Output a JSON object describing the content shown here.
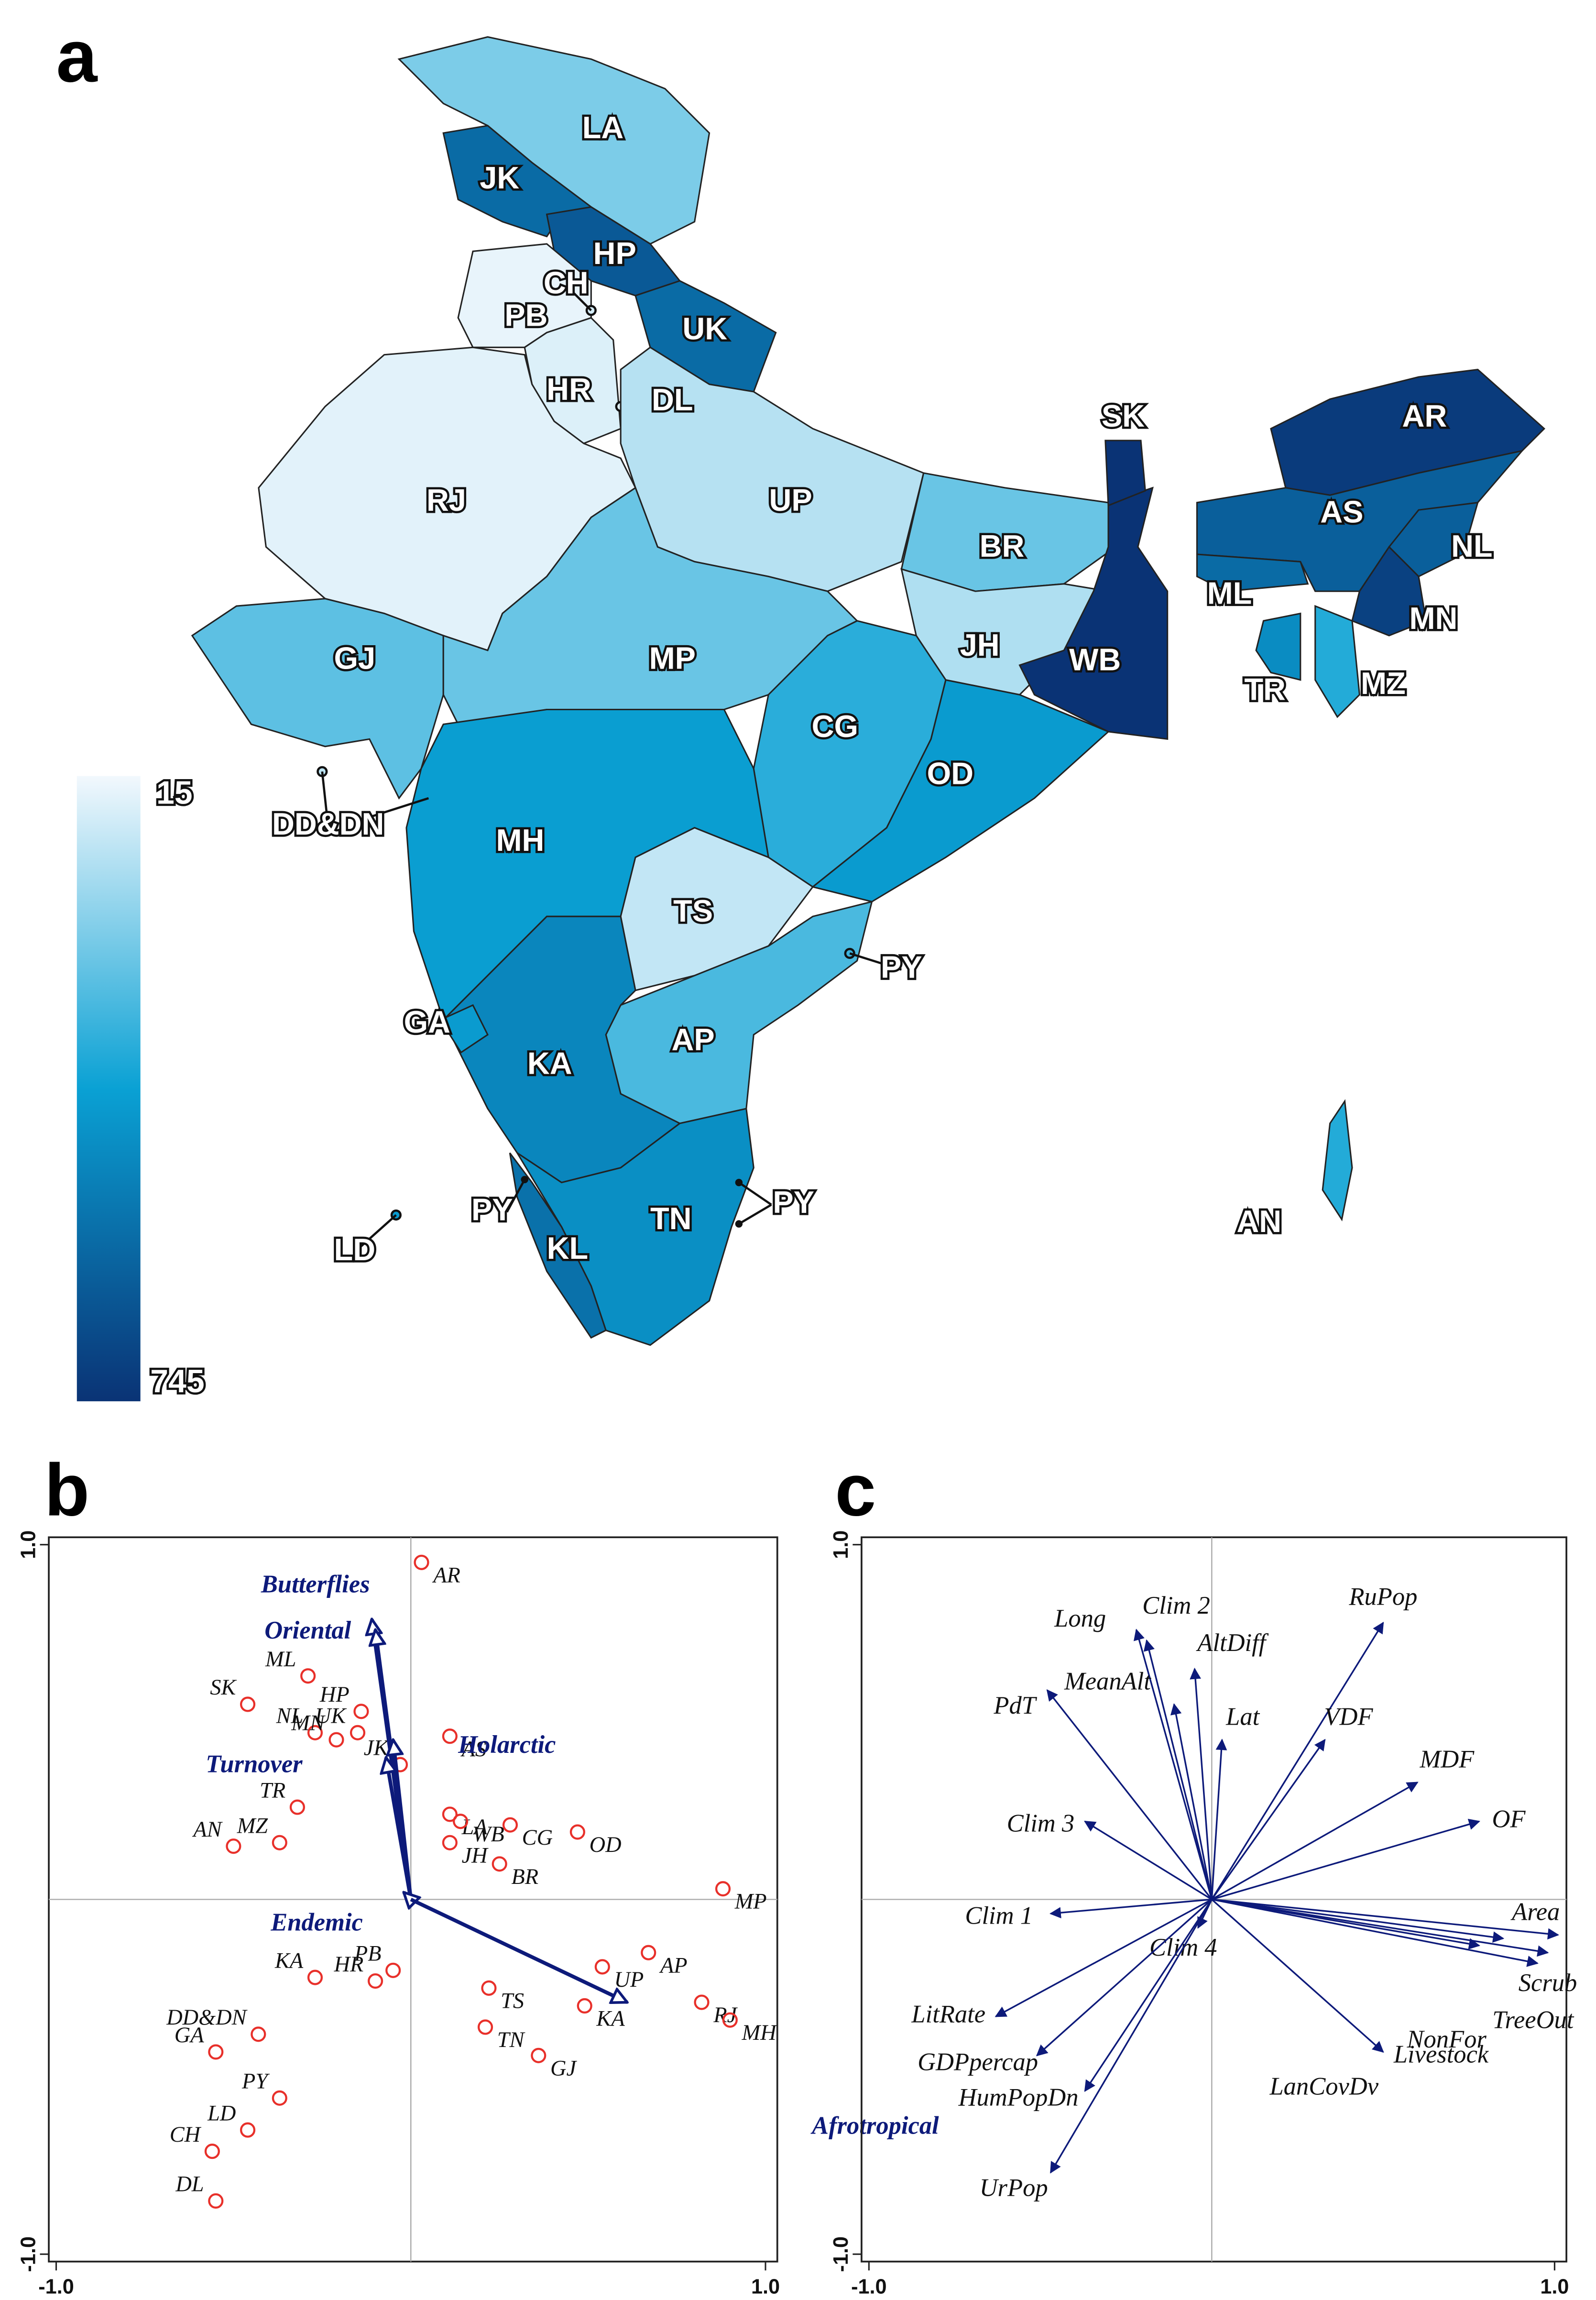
{
  "chart_data": [
    {
      "type": "choropleth",
      "panel": "a",
      "colorbar": {
        "min": 15,
        "max": 745,
        "colors": [
          "#f2f8fd",
          "#0aa1d4",
          "#0a3375"
        ]
      },
      "regions": [
        {
          "label": "LA",
          "value": 200
        },
        {
          "label": "JK",
          "value": 560
        },
        {
          "label": "HP",
          "value": 620
        },
        {
          "label": "UK",
          "value": 560
        },
        {
          "label": "PB",
          "value": 30
        },
        {
          "label": "CH",
          "value": 60
        },
        {
          "label": "HR",
          "value": 50
        },
        {
          "label": "DL",
          "value": 40
        },
        {
          "label": "RJ",
          "value": 40
        },
        {
          "label": "UP",
          "value": 110
        },
        {
          "label": "BR",
          "value": 230
        },
        {
          "label": "GJ",
          "value": 250
        },
        {
          "label": "MP",
          "value": 230
        },
        {
          "label": "JH",
          "value": 120
        },
        {
          "label": "WB",
          "value": 745
        },
        {
          "label": "CG",
          "value": 330
        },
        {
          "label": "OD",
          "value": 400
        },
        {
          "label": "MH",
          "value": 390
        },
        {
          "label": "TS",
          "value": 90
        },
        {
          "label": "AP",
          "value": 280
        },
        {
          "label": "KA",
          "value": 470
        },
        {
          "label": "GA",
          "value": 400
        },
        {
          "label": "TN",
          "value": 440
        },
        {
          "label": "KL",
          "value": 540
        },
        {
          "label": "PY",
          "value": 300
        },
        {
          "label": "SK",
          "value": 745
        },
        {
          "label": "AR",
          "value": 720
        },
        {
          "label": "AS",
          "value": 600
        },
        {
          "label": "NL",
          "value": 600
        },
        {
          "label": "ML",
          "value": 560
        },
        {
          "label": "TR",
          "value": 450
        },
        {
          "label": "MZ",
          "value": 340
        },
        {
          "label": "MN",
          "value": 700
        },
        {
          "label": "AN",
          "value": 340
        },
        {
          "label": "LD",
          "value": 400
        },
        {
          "label": "DD&DN",
          "value": 100
        }
      ],
      "labels": [
        "PY",
        "PY"
      ]
    },
    {
      "type": "biplot",
      "panel": "b",
      "xlim": [
        -1,
        1
      ],
      "ylim": [
        -1,
        1
      ],
      "xticks": [
        {
          "value": -1,
          "label": "-1.0"
        },
        {
          "value": 1,
          "label": "1.0"
        }
      ],
      "yticks": [
        {
          "value": -1,
          "label": "-1.0"
        },
        {
          "value": 1,
          "label": "1.0"
        }
      ],
      "points": {
        "color": "#e8302a",
        "labels": [
          "AR",
          "ML",
          "SK",
          "HP",
          "NL",
          "MN",
          "UK",
          "JK",
          "AS",
          "TR",
          "AN",
          "MZ",
          "LA",
          "WB",
          "JH",
          "CG",
          "BR",
          "OD",
          "MP",
          "UP",
          "AP",
          "RJ",
          "MH",
          "KA",
          "TS",
          "TN",
          "GJ",
          "PB",
          "HR",
          "KA",
          "DD&DN",
          "GA",
          "PY",
          "LD",
          "CH",
          "DL"
        ],
        "x": [
          0.03,
          -0.29,
          -0.46,
          -0.14,
          -0.27,
          -0.21,
          -0.15,
          -0.03,
          0.11,
          -0.32,
          -0.5,
          -0.37,
          0.11,
          0.14,
          0.11,
          0.28,
          0.25,
          0.47,
          0.88,
          0.54,
          0.67,
          0.82,
          0.9,
          0.49,
          0.22,
          0.21,
          0.36,
          -0.05,
          -0.1,
          -0.27,
          -0.43,
          -0.55,
          -0.37,
          -0.46,
          -0.56,
          -0.55
        ],
        "y": [
          0.95,
          0.63,
          0.55,
          0.53,
          0.47,
          0.45,
          0.47,
          0.38,
          0.46,
          0.26,
          0.15,
          0.16,
          0.24,
          0.22,
          0.16,
          0.21,
          0.1,
          0.19,
          0.03,
          -0.19,
          -0.15,
          -0.29,
          -0.34,
          -0.3,
          -0.25,
          -0.36,
          -0.44,
          -0.2,
          -0.23,
          -0.22,
          -0.38,
          -0.43,
          -0.56,
          -0.65,
          -0.71,
          -0.85
        ]
      },
      "arrows": {
        "color": "#0d1a7a",
        "labels": [
          "Butterflies",
          "Oriental",
          "Turnover",
          "Holarctic",
          "Endemic",
          "Afrotropical"
        ],
        "x": [
          -0.11,
          -0.1,
          -0.07,
          -0.05,
          -0.02,
          0.61
        ],
        "y": [
          0.79,
          0.76,
          0.4,
          0.45,
          0.02,
          -0.29
        ]
      }
    },
    {
      "type": "biplot",
      "panel": "c",
      "xlim": [
        -1,
        1
      ],
      "ylim": [
        -1,
        1
      ],
      "xticks": [
        {
          "value": -1,
          "label": "-1.0"
        },
        {
          "value": 1,
          "label": "1.0"
        }
      ],
      "yticks": [
        {
          "value": -1,
          "label": "-1.0"
        },
        {
          "value": 1,
          "label": "1.0"
        }
      ],
      "arrows": {
        "color": "#0d1a7a",
        "labels": [
          "RuPop",
          "Long",
          "Clim 2",
          "AltDiff",
          "MeanAlt",
          "Lat",
          "PdT",
          "VDF",
          "MDF",
          "OF",
          "Clim 3",
          "Clim 1",
          "Area",
          "Scrub",
          "TreeOut",
          "NonFor",
          "Livestock",
          "Clim 4",
          "LitRate",
          "GDPpercap",
          "HumPopDn",
          "LanCovDv",
          "UrPop"
        ],
        "x": [
          0.5,
          -0.22,
          -0.19,
          -0.05,
          -0.11,
          0.03,
          -0.48,
          0.33,
          0.6,
          0.78,
          -0.37,
          -0.47,
          1.01,
          0.98,
          0.95,
          0.78,
          0.85,
          -0.04,
          -0.63,
          -0.51,
          -0.37,
          0.5,
          -0.47
        ],
        "y": [
          0.78,
          0.76,
          0.73,
          0.65,
          0.55,
          0.45,
          0.59,
          0.45,
          0.33,
          0.22,
          0.22,
          -0.04,
          -0.1,
          -0.15,
          -0.18,
          -0.13,
          -0.11,
          -0.08,
          -0.33,
          -0.44,
          -0.54,
          -0.43,
          -0.77
        ]
      }
    }
  ],
  "panels": [
    "a",
    "b",
    "c"
  ]
}
